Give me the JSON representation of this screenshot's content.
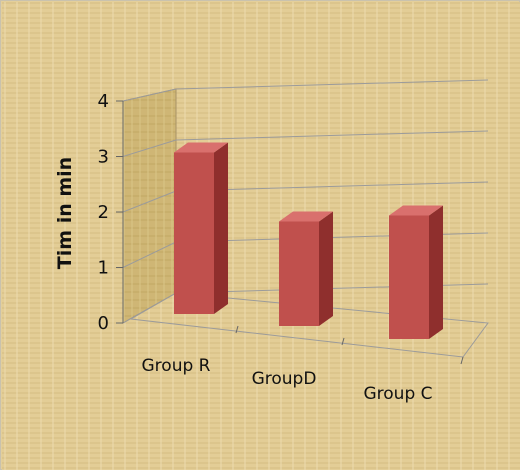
{
  "chart_data": {
    "type": "bar",
    "title": "",
    "xlabel": "",
    "ylabel": "Tim in min",
    "categories": [
      "Group R",
      "GroupD",
      "Group C"
    ],
    "values": [
      3.4,
      2.2,
      2.6
    ],
    "ylim": [
      0,
      4
    ],
    "yticks": [
      "0",
      "1",
      "2",
      "3",
      "4"
    ],
    "grid": true,
    "legend": "none",
    "three_d": true,
    "colors": {
      "bar_front": "#c0504d",
      "bar_side": "#8f2f2d",
      "bar_top": "#d9706d",
      "background": "#e4cf9a",
      "back_wall": "#d2b878",
      "gridline": "#9b9b9b"
    }
  }
}
